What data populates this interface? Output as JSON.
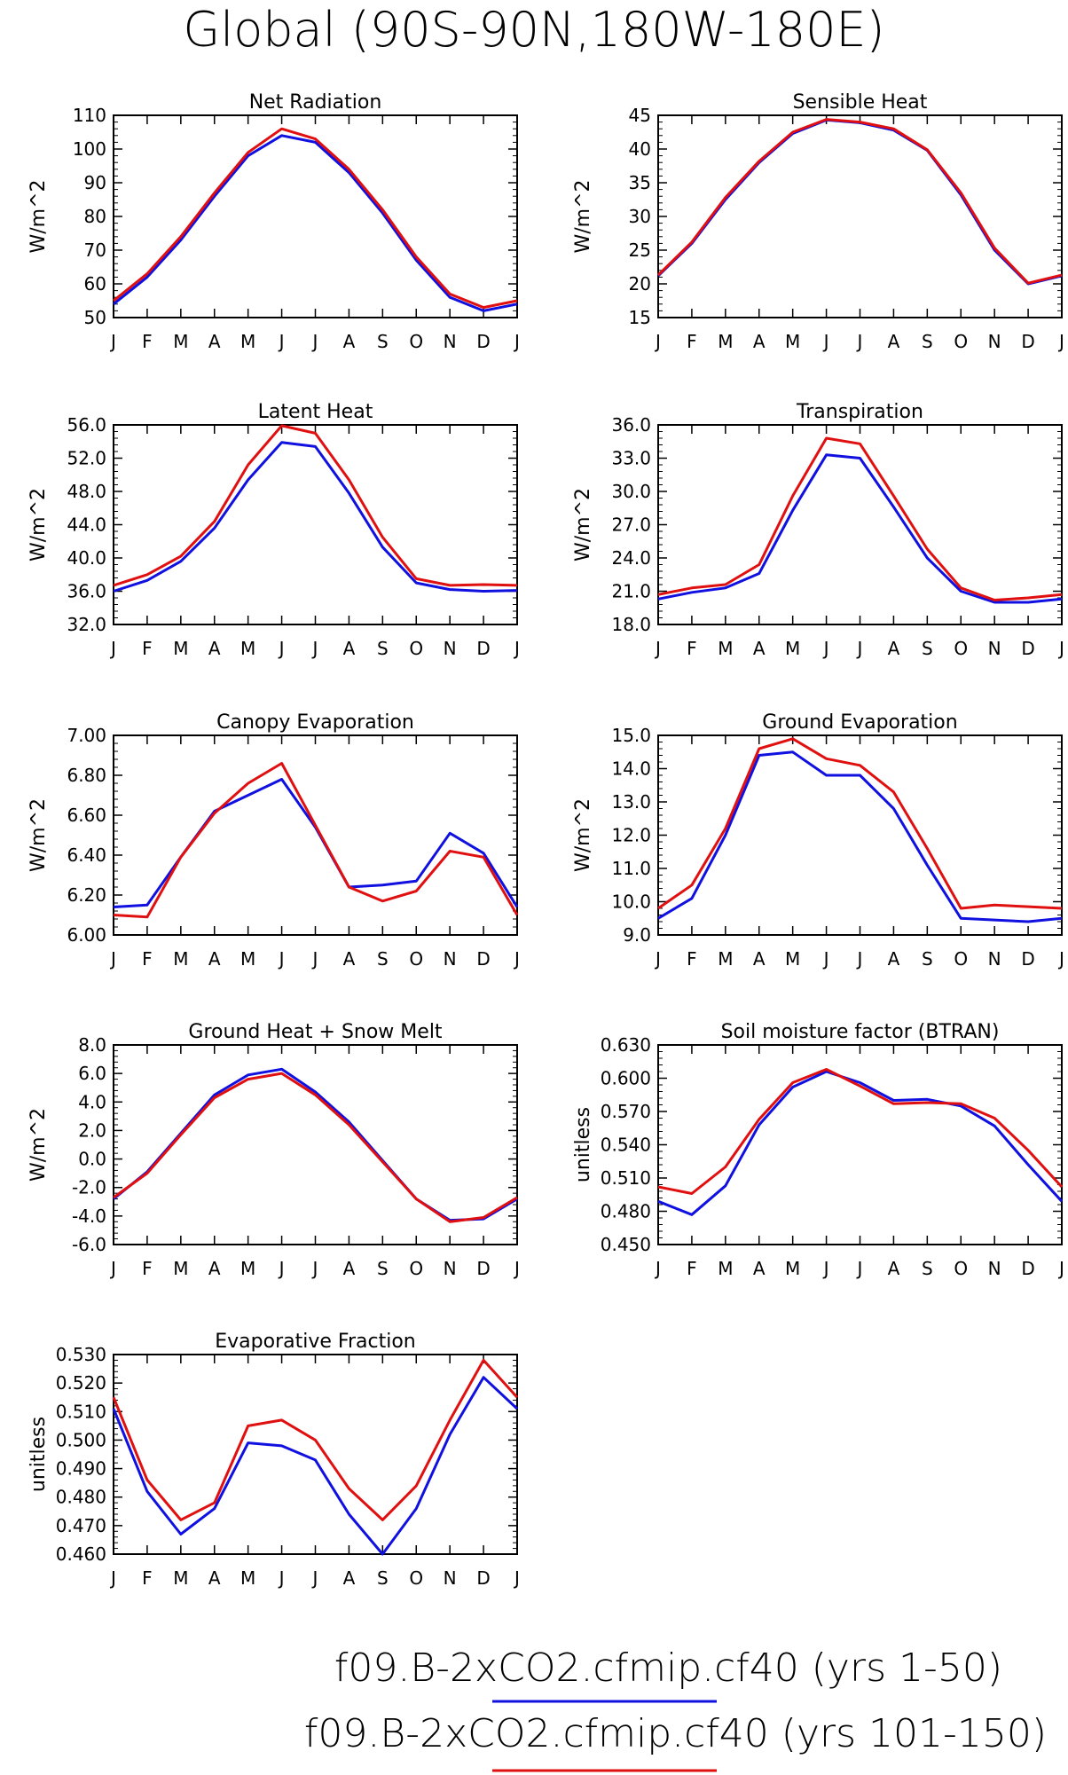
{
  "page_title": "Global (90S-90N,180W-180E)",
  "colors": {
    "series_a": "#1010e0",
    "series_b": "#e01010",
    "axis": "#000000"
  },
  "legend": [
    {
      "label": "f09.B-2xCO2.cfmip.cf40 (yrs 1-50)",
      "color": "#1010e0"
    },
    {
      "label": "f09.B-2xCO2.cfmip.cf40 (yrs 101-150)",
      "color": "#e01010"
    }
  ],
  "chart_data": [
    {
      "type": "line",
      "title": "Net Radiation",
      "ylabel": "W/m^2",
      "categories": [
        "J",
        "F",
        "M",
        "A",
        "M",
        "J",
        "J",
        "A",
        "S",
        "O",
        "N",
        "D",
        "J"
      ],
      "ylim": [
        50,
        110
      ],
      "yticks": [
        "50",
        "60",
        "70",
        "80",
        "90",
        "100",
        "110"
      ],
      "series": [
        {
          "values": [
            54,
            62,
            73,
            86,
            98,
            104,
            102,
            93,
            81,
            67,
            56,
            52,
            54
          ]
        },
        {
          "values": [
            55,
            63,
            74,
            87,
            99,
            106,
            103,
            94,
            82,
            68,
            57,
            53,
            55
          ]
        }
      ]
    },
    {
      "type": "line",
      "title": "Sensible Heat",
      "ylabel": "W/m^2",
      "categories": [
        "J",
        "F",
        "M",
        "A",
        "M",
        "J",
        "J",
        "A",
        "S",
        "O",
        "N",
        "D",
        "J"
      ],
      "ylim": [
        15,
        45
      ],
      "yticks": [
        "15",
        "20",
        "25",
        "30",
        "35",
        "40",
        "45"
      ],
      "series": [
        {
          "values": [
            21.2,
            26,
            32.5,
            38,
            42.3,
            44.3,
            43.9,
            42.8,
            39.8,
            33.2,
            25,
            20,
            21.2
          ]
        },
        {
          "values": [
            21.3,
            26.2,
            32.8,
            38.2,
            42.5,
            44.4,
            44.0,
            43.0,
            39.9,
            33.5,
            25.3,
            20.1,
            21.3
          ]
        }
      ]
    },
    {
      "type": "line",
      "title": "Latent Heat",
      "ylabel": "W/m^2",
      "categories": [
        "J",
        "F",
        "M",
        "A",
        "M",
        "J",
        "J",
        "A",
        "S",
        "O",
        "N",
        "D",
        "J"
      ],
      "ylim": [
        32,
        56
      ],
      "yticks": [
        "32.0",
        "36.0",
        "40.0",
        "44.0",
        "48.0",
        "52.0",
        "56.0"
      ],
      "series": [
        {
          "values": [
            36,
            37.3,
            39.6,
            43.6,
            49.4,
            53.9,
            53.4,
            47.8,
            41.3,
            37,
            36.2,
            36,
            36.1
          ]
        },
        {
          "values": [
            36.7,
            38,
            40.2,
            44.4,
            51.2,
            55.9,
            55,
            49.4,
            42.5,
            37.5,
            36.7,
            36.8,
            36.7
          ]
        }
      ]
    },
    {
      "type": "line",
      "title": "Transpiration",
      "ylabel": "W/m^2",
      "categories": [
        "J",
        "F",
        "M",
        "A",
        "M",
        "J",
        "J",
        "A",
        "S",
        "O",
        "N",
        "D",
        "J"
      ],
      "ylim": [
        18,
        36
      ],
      "yticks": [
        "18.0",
        "21.0",
        "24.0",
        "27.0",
        "30.0",
        "33.0",
        "36.0"
      ],
      "series": [
        {
          "values": [
            20.3,
            20.9,
            21.3,
            22.6,
            28.3,
            33.3,
            33,
            28.6,
            24,
            21,
            20,
            20,
            20.3
          ]
        },
        {
          "values": [
            20.7,
            21.3,
            21.6,
            23.4,
            29.6,
            34.8,
            34.3,
            29.6,
            24.8,
            21.3,
            20.2,
            20.4,
            20.7
          ]
        }
      ]
    },
    {
      "type": "line",
      "title": "Canopy Evaporation",
      "ylabel": "W/m^2",
      "categories": [
        "J",
        "F",
        "M",
        "A",
        "M",
        "J",
        "J",
        "A",
        "S",
        "O",
        "N",
        "D",
        "J"
      ],
      "ylim": [
        6.0,
        7.0
      ],
      "yticks": [
        "6.00",
        "6.20",
        "6.40",
        "6.60",
        "6.80",
        "7.00"
      ],
      "series": [
        {
          "values": [
            6.14,
            6.15,
            6.39,
            6.62,
            6.7,
            6.78,
            6.54,
            6.24,
            6.25,
            6.27,
            6.51,
            6.41,
            6.14
          ]
        },
        {
          "values": [
            6.1,
            6.09,
            6.39,
            6.61,
            6.76,
            6.86,
            6.55,
            6.24,
            6.17,
            6.22,
            6.42,
            6.39,
            6.1
          ]
        }
      ]
    },
    {
      "type": "line",
      "title": "Ground Evaporation",
      "ylabel": "W/m^2",
      "categories": [
        "J",
        "F",
        "M",
        "A",
        "M",
        "J",
        "J",
        "A",
        "S",
        "O",
        "N",
        "D",
        "J"
      ],
      "ylim": [
        9.0,
        15.0
      ],
      "yticks": [
        "9.0",
        "10.0",
        "11.0",
        "12.0",
        "13.0",
        "14.0",
        "15.0"
      ],
      "series": [
        {
          "values": [
            9.5,
            10.1,
            12.0,
            14.4,
            14.5,
            13.8,
            13.8,
            12.8,
            11.1,
            9.5,
            9.45,
            9.4,
            9.5
          ]
        },
        {
          "values": [
            9.8,
            10.5,
            12.2,
            14.6,
            14.9,
            14.3,
            14.1,
            13.3,
            11.6,
            9.8,
            9.9,
            9.85,
            9.8
          ]
        }
      ]
    },
    {
      "type": "line",
      "title": "Ground Heat + Snow Melt",
      "ylabel": "W/m^2",
      "categories": [
        "J",
        "F",
        "M",
        "A",
        "M",
        "J",
        "J",
        "A",
        "S",
        "O",
        "N",
        "D",
        "J"
      ],
      "ylim": [
        -6.0,
        8.0
      ],
      "yticks": [
        "-6.0",
        "-4.0",
        "-2.0",
        "0.0",
        "2.0",
        "4.0",
        "6.0",
        "8.0"
      ],
      "series": [
        {
          "values": [
            -2.8,
            -0.9,
            1.8,
            4.5,
            5.9,
            6.3,
            4.7,
            2.6,
            -0.1,
            -2.8,
            -4.3,
            -4.2,
            -2.8
          ]
        },
        {
          "values": [
            -2.7,
            -1.0,
            1.7,
            4.3,
            5.6,
            6.0,
            4.5,
            2.4,
            -0.2,
            -2.8,
            -4.4,
            -4.1,
            -2.7
          ]
        }
      ]
    },
    {
      "type": "line",
      "title": "Soil moisture factor (BTRAN)",
      "ylabel": "unitless",
      "categories": [
        "J",
        "F",
        "M",
        "A",
        "M",
        "J",
        "J",
        "A",
        "S",
        "O",
        "N",
        "D",
        "J"
      ],
      "ylim": [
        0.45,
        0.63
      ],
      "yticks": [
        "0.450",
        "0.480",
        "0.510",
        "0.540",
        "0.570",
        "0.600",
        "0.630"
      ],
      "series": [
        {
          "values": [
            0.489,
            0.477,
            0.503,
            0.558,
            0.592,
            0.606,
            0.596,
            0.58,
            0.581,
            0.575,
            0.557,
            0.522,
            0.489
          ]
        },
        {
          "values": [
            0.502,
            0.496,
            0.52,
            0.563,
            0.596,
            0.608,
            0.593,
            0.577,
            0.578,
            0.577,
            0.564,
            0.535,
            0.502
          ]
        }
      ]
    },
    {
      "type": "line",
      "title": "Evaporative Fraction",
      "ylabel": "unitless",
      "categories": [
        "J",
        "F",
        "M",
        "A",
        "M",
        "J",
        "J",
        "A",
        "S",
        "O",
        "N",
        "D",
        "J"
      ],
      "ylim": [
        0.46,
        0.53
      ],
      "yticks": [
        "0.460",
        "0.470",
        "0.480",
        "0.490",
        "0.500",
        "0.510",
        "0.520",
        "0.530"
      ],
      "series": [
        {
          "values": [
            0.511,
            0.482,
            0.467,
            0.476,
            0.499,
            0.498,
            0.493,
            0.474,
            0.46,
            0.476,
            0.502,
            0.522,
            0.511
          ]
        },
        {
          "values": [
            0.515,
            0.486,
            0.472,
            0.478,
            0.505,
            0.507,
            0.5,
            0.483,
            0.472,
            0.484,
            0.507,
            0.528,
            0.515
          ]
        }
      ]
    }
  ]
}
